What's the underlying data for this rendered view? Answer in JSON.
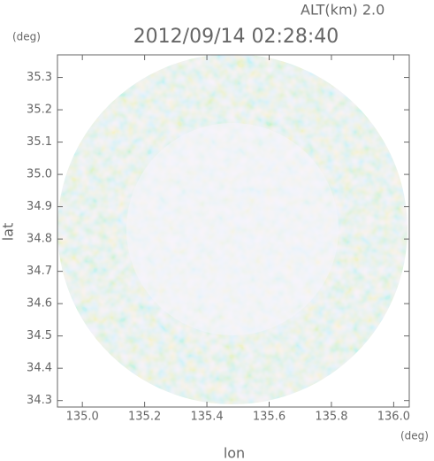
{
  "chart_data": {
    "type": "radar-scan",
    "title": "2012/09/14 02:28:40",
    "subtitle": "ALT(km) 2.0",
    "xlabel": "lon",
    "ylabel": "lat",
    "xunit": "(deg)",
    "yunit": "(deg)",
    "xlim": [
      134.92,
      136.05
    ],
    "ylim": [
      34.28,
      35.37
    ],
    "xticks": [
      {
        "value": 135,
        "label": "135.0"
      },
      135.2,
      135.4,
      135.6,
      135.8,
      {
        "value": 136,
        "label": "136.0"
      }
    ],
    "yticks": [
      34.3,
      34.4,
      34.5,
      34.6,
      34.7,
      34.8,
      34.9,
      {
        "value": 35,
        "label": "35.0"
      },
      35.1,
      35.2,
      35.3
    ]
  }
}
